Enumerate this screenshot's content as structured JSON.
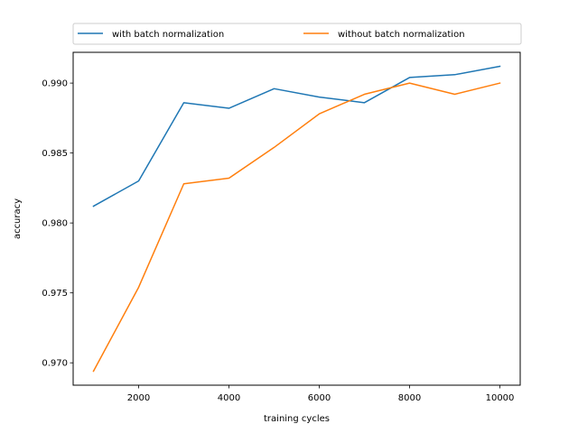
{
  "chart_data": {
    "type": "line",
    "title": "",
    "xlabel": "training cycles",
    "ylabel": "accuracy",
    "x": [
      1000,
      2000,
      3000,
      4000,
      5000,
      6000,
      7000,
      8000,
      9000,
      10000
    ],
    "xlim": [
      550,
      10450
    ],
    "ylim": [
      0.9684,
      0.9922
    ],
    "xticks": [
      2000,
      4000,
      6000,
      8000,
      10000
    ],
    "xtick_labels": [
      "2000",
      "4000",
      "6000",
      "8000",
      "10000"
    ],
    "yticks": [
      0.97,
      0.975,
      0.98,
      0.985,
      0.99
    ],
    "ytick_labels": [
      "0.970",
      "0.975",
      "0.980",
      "0.985",
      "0.990"
    ],
    "grid": false,
    "legend_position": "top-center, outside plot, two columns",
    "series": [
      {
        "name": "with batch normalization",
        "color": "#1f77b4",
        "values": [
          0.9812,
          0.983,
          0.9886,
          0.9882,
          0.9896,
          0.989,
          0.9886,
          0.9904,
          0.9906,
          0.9912
        ]
      },
      {
        "name": "without batch normalization",
        "color": "#ff7f0e",
        "values": [
          0.9694,
          0.9754,
          0.9828,
          0.9832,
          0.9854,
          0.9878,
          0.9892,
          0.99,
          0.9892,
          0.99
        ]
      }
    ]
  }
}
